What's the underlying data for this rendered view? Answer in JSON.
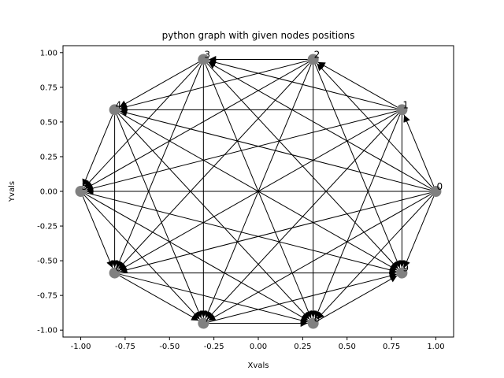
{
  "chart_data": {
    "type": "scatter",
    "title": "python graph with given nodes positions",
    "xlabel": "Xvals",
    "ylabel": "Yvals",
    "xlim": [
      -1.1,
      1.1
    ],
    "ylim": [
      -1.05,
      1.05
    ],
    "x_ticks": [
      "-1.00",
      "-0.75",
      "-0.50",
      "-0.25",
      "0.00",
      "0.25",
      "0.50",
      "0.75",
      "1.00"
    ],
    "y_ticks": [
      "1.00",
      "0.75",
      "0.50",
      "0.25",
      "0.00",
      "-0.25",
      "-0.50",
      "-0.75",
      "-1.00"
    ],
    "grid": false,
    "node_color": "#808080",
    "edge_color": "#000000",
    "nodes": [
      {
        "label": "0",
        "x": 1.0,
        "y": 0.0
      },
      {
        "label": "1",
        "x": 0.809,
        "y": 0.588
      },
      {
        "label": "2",
        "x": 0.309,
        "y": 0.951
      },
      {
        "label": "3",
        "x": -0.309,
        "y": 0.951
      },
      {
        "label": "4",
        "x": -0.809,
        "y": 0.588
      },
      {
        "label": "5",
        "x": -1.0,
        "y": 0.0
      },
      {
        "label": "6",
        "x": -0.809,
        "y": -0.588
      },
      {
        "label": "7",
        "x": -0.309,
        "y": -0.951
      },
      {
        "label": "8",
        "x": 0.309,
        "y": -0.951
      },
      {
        "label": "9",
        "x": 0.809,
        "y": -0.588
      }
    ],
    "edges": [
      [
        0,
        1
      ],
      [
        0,
        2
      ],
      [
        0,
        3
      ],
      [
        0,
        4
      ],
      [
        0,
        5
      ],
      [
        0,
        6
      ],
      [
        0,
        7
      ],
      [
        0,
        8
      ],
      [
        0,
        9
      ],
      [
        1,
        2
      ],
      [
        1,
        3
      ],
      [
        1,
        4
      ],
      [
        1,
        5
      ],
      [
        1,
        6
      ],
      [
        1,
        7
      ],
      [
        1,
        8
      ],
      [
        1,
        9
      ],
      [
        2,
        3
      ],
      [
        2,
        4
      ],
      [
        2,
        5
      ],
      [
        2,
        6
      ],
      [
        2,
        7
      ],
      [
        2,
        8
      ],
      [
        2,
        9
      ],
      [
        3,
        4
      ],
      [
        3,
        5
      ],
      [
        3,
        6
      ],
      [
        3,
        7
      ],
      [
        3,
        8
      ],
      [
        3,
        9
      ],
      [
        4,
        5
      ],
      [
        4,
        6
      ],
      [
        4,
        7
      ],
      [
        4,
        8
      ],
      [
        4,
        9
      ],
      [
        5,
        6
      ],
      [
        5,
        7
      ],
      [
        5,
        8
      ],
      [
        5,
        9
      ],
      [
        6,
        7
      ],
      [
        6,
        8
      ],
      [
        6,
        9
      ],
      [
        7,
        8
      ],
      [
        7,
        9
      ],
      [
        8,
        9
      ]
    ]
  }
}
